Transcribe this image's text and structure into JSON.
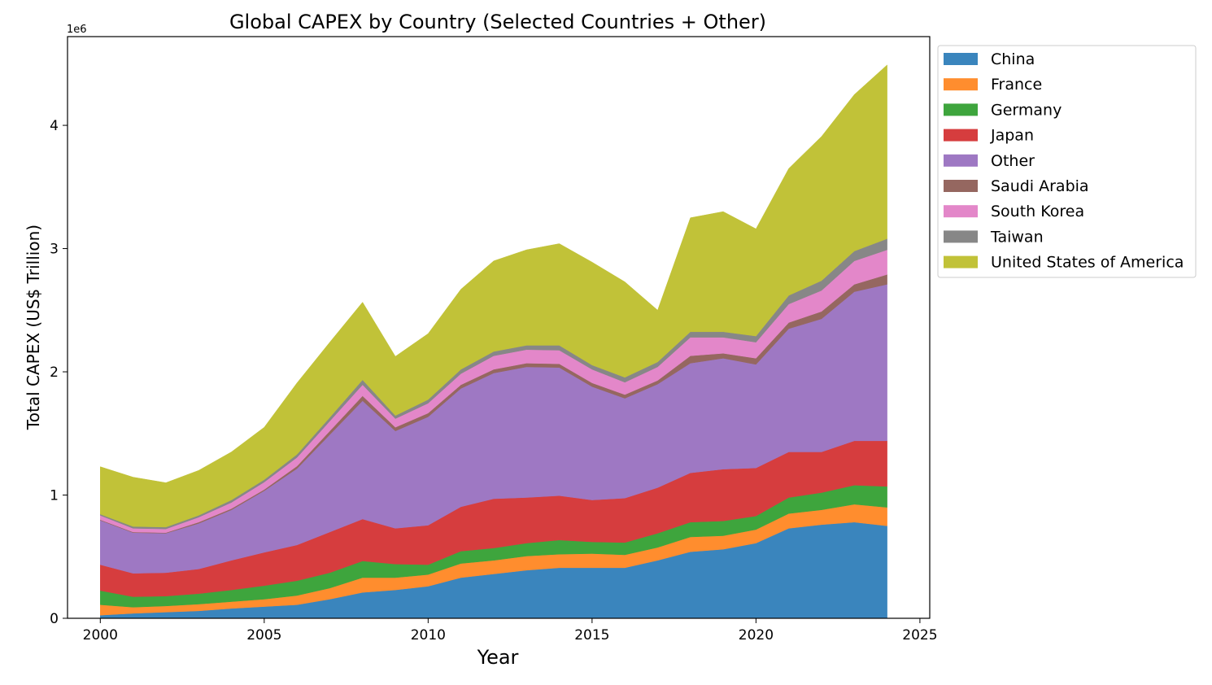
{
  "chart_data": {
    "type": "area",
    "stacked": true,
    "title": "Global CAPEX by Country (Selected Countries + Other)",
    "xlabel": "Year",
    "ylabel": "Total CAPEX (US$ Trillion)",
    "y_offset_label": "1e6",
    "xlim": [
      1999,
      2025.3
    ],
    "ylim": [
      0,
      4720000
    ],
    "xticks": [
      2000,
      2005,
      2010,
      2015,
      2020,
      2025
    ],
    "xtick_labels": [
      "2000",
      "2005",
      "2010",
      "2015",
      "2020",
      "2025"
    ],
    "yticks": [
      0,
      1000000,
      2000000,
      3000000,
      4000000
    ],
    "ytick_labels": [
      "0",
      "1",
      "2",
      "3",
      "4"
    ],
    "legend_position": "outside-upper-right",
    "x": [
      2000,
      2001,
      2002,
      2003,
      2004,
      2005,
      2006,
      2007,
      2008,
      2009,
      2010,
      2011,
      2012,
      2013,
      2014,
      2015,
      2016,
      2017,
      2018,
      2019,
      2020,
      2021,
      2022,
      2023,
      2024
    ],
    "series": [
      {
        "name": "China",
        "color": "#3a85bd",
        "values": [
          25000,
          40000,
          50000,
          60000,
          80000,
          95000,
          110000,
          155000,
          210000,
          230000,
          260000,
          330000,
          360000,
          390000,
          410000,
          410000,
          410000,
          470000,
          540000,
          560000,
          610000,
          730000,
          760000,
          780000,
          750000
        ]
      },
      {
        "name": "France",
        "color": "#ff8d2e",
        "values": [
          85000,
          50000,
          50000,
          55000,
          55000,
          60000,
          75000,
          90000,
          120000,
          100000,
          95000,
          115000,
          110000,
          115000,
          110000,
          115000,
          105000,
          105000,
          120000,
          110000,
          110000,
          120000,
          120000,
          145000,
          150000
        ]
      },
      {
        "name": "Germany",
        "color": "#3ea53d",
        "values": [
          115000,
          85000,
          80000,
          85000,
          95000,
          110000,
          120000,
          125000,
          135000,
          110000,
          80000,
          100000,
          100000,
          105000,
          115000,
          95000,
          100000,
          115000,
          120000,
          120000,
          110000,
          130000,
          140000,
          155000,
          170000
        ]
      },
      {
        "name": "Japan",
        "color": "#d63d3e",
        "values": [
          210000,
          190000,
          190000,
          200000,
          240000,
          270000,
          290000,
          330000,
          340000,
          290000,
          320000,
          360000,
          400000,
          370000,
          360000,
          340000,
          360000,
          370000,
          400000,
          420000,
          390000,
          370000,
          330000,
          360000,
          370000
        ]
      },
      {
        "name": "Other",
        "color": "#9e78c3",
        "values": [
          360000,
          330000,
          320000,
          370000,
          410000,
          500000,
          620000,
          790000,
          960000,
          790000,
          880000,
          960000,
          1020000,
          1060000,
          1040000,
          920000,
          810000,
          840000,
          890000,
          900000,
          840000,
          1000000,
          1080000,
          1210000,
          1270000
        ]
      },
      {
        "name": "Saudi Arabia",
        "color": "#956760",
        "values": [
          5000,
          5000,
          5000,
          10000,
          10000,
          10000,
          20000,
          30000,
          40000,
          30000,
          30000,
          30000,
          30000,
          30000,
          30000,
          30000,
          30000,
          30000,
          60000,
          40000,
          50000,
          50000,
          60000,
          60000,
          80000
        ]
      },
      {
        "name": "South Korea",
        "color": "#e387c9",
        "values": [
          35000,
          30000,
          30000,
          40000,
          50000,
          60000,
          70000,
          80000,
          90000,
          70000,
          80000,
          90000,
          110000,
          110000,
          110000,
          110000,
          100000,
          110000,
          150000,
          130000,
          130000,
          150000,
          170000,
          190000,
          200000
        ]
      },
      {
        "name": "Taiwan",
        "color": "#878787",
        "values": [
          10000,
          15000,
          15000,
          15000,
          20000,
          20000,
          25000,
          30000,
          40000,
          25000,
          30000,
          35000,
          35000,
          35000,
          40000,
          35000,
          40000,
          40000,
          45000,
          45000,
          50000,
          70000,
          80000,
          80000,
          90000
        ]
      },
      {
        "name": "United States of America",
        "color": "#c1c238",
        "values": [
          385000,
          400000,
          360000,
          365000,
          390000,
          425000,
          580000,
          610000,
          630000,
          480000,
          535000,
          650000,
          735000,
          775000,
          825000,
          835000,
          775000,
          420000,
          925000,
          975000,
          870000,
          1030000,
          1170000,
          1270000,
          1410000
        ]
      }
    ]
  }
}
